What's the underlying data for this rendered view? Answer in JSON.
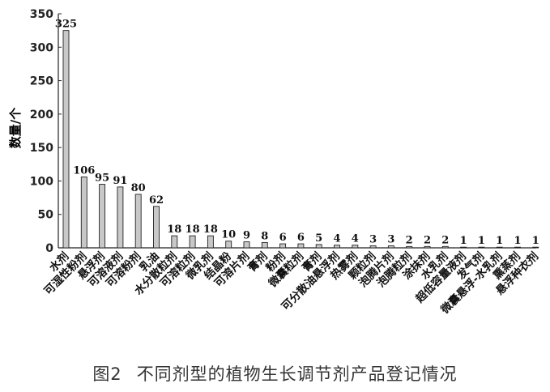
{
  "chart_data": {
    "type": "bar",
    "ylabel": "数量/个",
    "ylim": [
      0,
      350
    ],
    "yticks": [
      0,
      50,
      100,
      150,
      200,
      250,
      300,
      350
    ],
    "grid": false,
    "bar_color": "#c8c8c8",
    "categories": [
      "水剂",
      "可湿性粉剂",
      "悬浮剂",
      "可溶液剂",
      "可溶粉剂",
      "乳油",
      "水分散粒剂",
      "可溶粒剂",
      "微乳剂",
      "结晶粉",
      "可溶片剂",
      "膏剂",
      "粉剂",
      "微囊粒剂",
      "膏剂",
      "可分散油悬浮剂",
      "热雾剂",
      "颗粒剂",
      "泡腾片剂",
      "泡腾粒剂",
      "涂抹剂",
      "水乳剂",
      "超低容量液剂",
      "发气剂",
      "微囊悬浮-水乳剂",
      "熏蒸剂",
      "悬浮种衣剂"
    ],
    "values": [
      325,
      106,
      95,
      91,
      80,
      62,
      18,
      18,
      18,
      10,
      9,
      8,
      6,
      6,
      5,
      4,
      4,
      3,
      3,
      2,
      2,
      2,
      1,
      1,
      1,
      1,
      1
    ]
  },
  "caption": {
    "figure_label": "图2",
    "title": "不同剂型的植物生长调节剂产品登记情况"
  }
}
